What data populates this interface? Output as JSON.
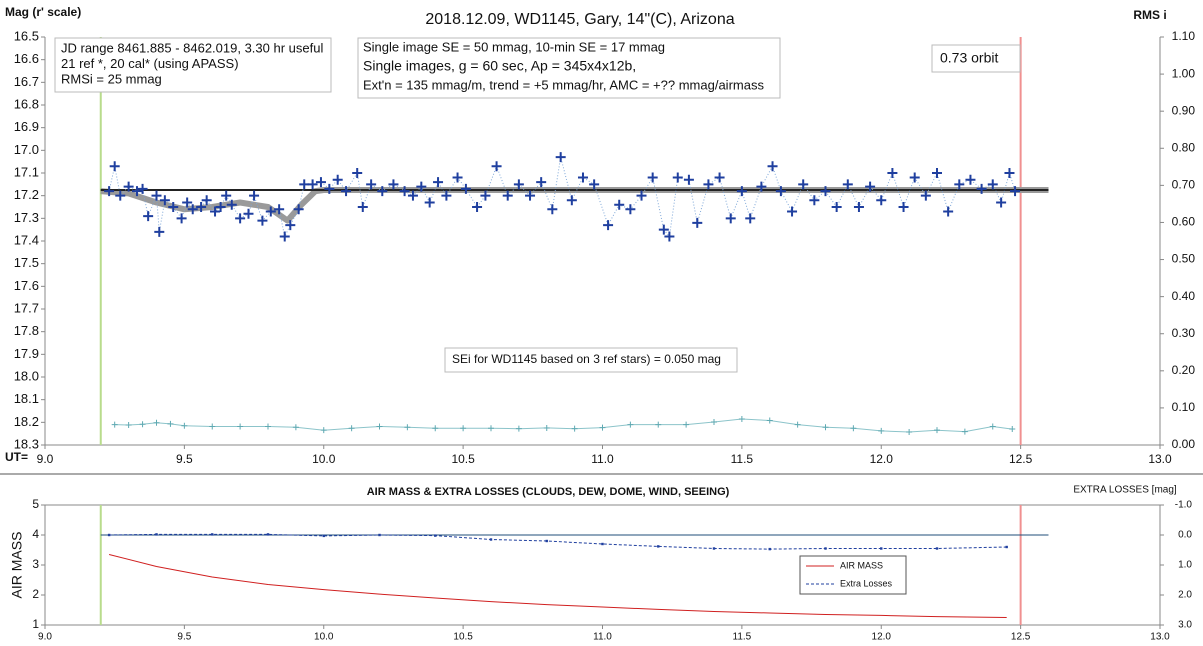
{
  "chart_data": [
    {
      "type": "line",
      "title": "2018.12.09, WD1145, Gary, 14\"(C), Arizona",
      "y_label": "Mag (r' scale)",
      "y2_label": "RMS i",
      "x_label": "UT=",
      "xlim": [
        9.0,
        13.0
      ],
      "xticks": [
        {
          "value": 9.0,
          "label": "9.0"
        },
        9.5,
        {
          "value": 10.0,
          "label": "10.0"
        },
        10.5,
        {
          "value": 11.0,
          "label": "11.0"
        },
        11.5,
        {
          "value": 12.0,
          "label": "12.0"
        },
        12.5,
        {
          "value": 13.0,
          "label": "13.0"
        }
      ],
      "ylim": [
        18.3,
        16.5
      ],
      "yticks": [
        16.5,
        16.6,
        16.7,
        16.8,
        16.9,
        {
          "value": 17.0,
          "label": "17.0"
        },
        17.1,
        17.2,
        17.3,
        17.4,
        17.5,
        17.6,
        17.7,
        17.8,
        17.9,
        {
          "value": 18.0,
          "label": "18.0"
        },
        18.1,
        18.2,
        18.3
      ],
      "y2lim": [
        0,
        1.1
      ],
      "y2ticks": [
        {
          "value": 1.1,
          "label": "1.10"
        },
        {
          "value": 1.0,
          "label": "1.00"
        },
        {
          "value": 0.9,
          "label": "0.90"
        },
        {
          "value": 0.8,
          "label": "0.80"
        },
        {
          "value": 0.7,
          "label": "0.70"
        },
        {
          "value": 0.6,
          "label": "0.60"
        },
        {
          "value": 0.5,
          "label": "0.50"
        },
        {
          "value": 0.4,
          "label": "0.40"
        },
        {
          "value": 0.3,
          "label": "0.30"
        },
        {
          "value": 0.2,
          "label": "0.20"
        },
        {
          "value": 0.1,
          "label": "0.10"
        },
        {
          "value": 0.0,
          "label": "0.00"
        }
      ],
      "vlines": [
        {
          "x": 9.2,
          "color": "#b8dc8c"
        },
        {
          "x": 12.5,
          "color": "#f09090"
        }
      ],
      "annotations": [
        {
          "lines": [
            "JD range 8461.885 - 8462.019, 3.30 hr useful",
            "21 ref *, 20 cal* (using APASS)",
            "RMSi = 25 mmag"
          ]
        },
        {
          "lines": [
            "Single image SE = 50 mmag, 10-min SE = 17 mmag",
            "Single images, g = 60 sec, Ap = 345x4x12b,",
            "Ext'n = 135 mmag/m, trend = +5 mmag/hr, AMC = +?? mmag/airmass"
          ]
        },
        {
          "lines": [
            "0.73 orbit"
          ]
        },
        {
          "lines": [
            "SEi for WD1145 based on 3 ref stars) = 0.050 mag"
          ]
        }
      ],
      "series": [
        {
          "color": "#9a9a9a",
          "line": "thick",
          "x": [
            9.2,
            9.3,
            9.4,
            9.5,
            9.6,
            9.7,
            9.8,
            9.87,
            9.92,
            9.97,
            10.0,
            12.6
          ],
          "values": [
            17.18,
            17.19,
            17.23,
            17.26,
            17.25,
            17.23,
            17.25,
            17.31,
            17.24,
            17.18,
            17.175,
            17.175
          ]
        },
        {
          "color": "#222222",
          "line": "solid",
          "x": [
            9.2,
            12.6
          ],
          "values": [
            17.175,
            17.175
          ]
        },
        {
          "color": "#1f3f9f",
          "line_color": "#7ea7d8",
          "line": "dotted",
          "marker": "plus",
          "x": [
            9.23,
            9.25,
            9.27,
            9.3,
            9.33,
            9.35,
            9.37,
            9.4,
            9.41,
            9.43,
            9.46,
            9.49,
            9.51,
            9.53,
            9.56,
            9.58,
            9.61,
            9.63,
            9.65,
            9.67,
            9.7,
            9.73,
            9.75,
            9.78,
            9.81,
            9.84,
            9.86,
            9.88,
            9.91,
            9.93,
            9.96,
            9.99,
            10.02,
            10.05,
            10.08,
            10.12,
            10.14,
            10.17,
            10.21,
            10.25,
            10.29,
            10.32,
            10.35,
            10.38,
            10.41,
            10.44,
            10.48,
            10.51,
            10.55,
            10.58,
            10.62,
            10.66,
            10.7,
            10.74,
            10.78,
            10.82,
            10.85,
            10.89,
            10.93,
            10.97,
            11.02,
            11.06,
            11.1,
            11.14,
            11.18,
            11.22,
            11.24,
            11.27,
            11.31,
            11.34,
            11.38,
            11.42,
            11.46,
            11.5,
            11.53,
            11.57,
            11.61,
            11.64,
            11.68,
            11.72,
            11.76,
            11.8,
            11.84,
            11.88,
            11.92,
            11.96,
            12.0,
            12.04,
            12.08,
            12.12,
            12.16,
            12.2,
            12.24,
            12.28,
            12.32,
            12.36,
            12.4,
            12.43,
            12.46,
            12.48
          ],
          "values": [
            17.18,
            17.07,
            17.2,
            17.16,
            17.18,
            17.17,
            17.29,
            17.2,
            17.36,
            17.22,
            17.25,
            17.3,
            17.23,
            17.26,
            17.25,
            17.22,
            17.27,
            17.25,
            17.2,
            17.24,
            17.3,
            17.28,
            17.2,
            17.31,
            17.27,
            17.26,
            17.38,
            17.33,
            17.26,
            17.15,
            17.15,
            17.14,
            17.17,
            17.13,
            17.18,
            17.1,
            17.25,
            17.15,
            17.18,
            17.15,
            17.18,
            17.2,
            17.16,
            17.23,
            17.14,
            17.2,
            17.12,
            17.17,
            17.25,
            17.2,
            17.07,
            17.2,
            17.15,
            17.2,
            17.14,
            17.26,
            17.03,
            17.22,
            17.12,
            17.15,
            17.33,
            17.24,
            17.26,
            17.2,
            17.12,
            17.35,
            17.38,
            17.12,
            17.13,
            17.32,
            17.15,
            17.12,
            17.3,
            17.18,
            17.3,
            17.16,
            17.07,
            17.18,
            17.27,
            17.15,
            17.22,
            17.18,
            17.25,
            17.15,
            17.25,
            17.16,
            17.22,
            17.1,
            17.25,
            17.12,
            17.2,
            17.1,
            17.27,
            17.15,
            17.13,
            17.17,
            17.15,
            17.23,
            17.1,
            17.18
          ]
        },
        {
          "color": "#5fa9b2",
          "line_color": "#8cc4ca",
          "line": "thin",
          "marker": "small-plus",
          "axis": "y2",
          "x": [
            9.25,
            9.3,
            9.35,
            9.4,
            9.45,
            9.5,
            9.6,
            9.7,
            9.8,
            9.9,
            10.0,
            10.1,
            10.2,
            10.3,
            10.4,
            10.5,
            10.6,
            10.7,
            10.8,
            10.9,
            11.0,
            11.1,
            11.2,
            11.3,
            11.4,
            11.5,
            11.6,
            11.7,
            11.8,
            11.9,
            12.0,
            12.1,
            12.2,
            12.3,
            12.4,
            12.47
          ],
          "values": [
            0.055,
            0.054,
            0.056,
            0.06,
            0.057,
            0.052,
            0.05,
            0.05,
            0.05,
            0.048,
            0.04,
            0.045,
            0.05,
            0.048,
            0.045,
            0.045,
            0.045,
            0.044,
            0.046,
            0.044,
            0.047,
            0.055,
            0.055,
            0.055,
            0.062,
            0.07,
            0.066,
            0.055,
            0.048,
            0.045,
            0.038,
            0.035,
            0.04,
            0.036,
            0.05,
            0.043
          ]
        }
      ]
    },
    {
      "type": "line",
      "title": "AIR MASS & EXTRA LOSSES (CLOUDS, DEW, DOME, WIND, SEEING)",
      "y_label": "AIR MASS",
      "y2_label": "EXTRA LOSSES [mag]",
      "xlim": [
        9.0,
        13.0
      ],
      "xticks": [
        {
          "value": 9.0,
          "label": "9.0"
        },
        9.5,
        {
          "value": 10.0,
          "label": "10.0"
        },
        10.5,
        {
          "value": 11.0,
          "label": "11.0"
        },
        11.5,
        {
          "value": 12.0,
          "label": "12.0"
        },
        12.5,
        {
          "value": 13.0,
          "label": "13.0"
        }
      ],
      "ylim": [
        1,
        5
      ],
      "yticks": [
        1,
        2,
        3,
        4,
        5
      ],
      "y2lim": [
        3.0,
        -1.0
      ],
      "y2ticks": [
        {
          "value": -1.0,
          "label": "-1.0"
        },
        {
          "value": 0.0,
          "label": "0.0"
        },
        {
          "value": 1.0,
          "label": "1.0"
        },
        {
          "value": 2.0,
          "label": "2.0"
        },
        {
          "value": 3.0,
          "label": "3.0"
        }
      ],
      "vlines": [
        {
          "x": 9.2,
          "color": "#b8dc8c"
        },
        {
          "x": 12.5,
          "color": "#f09090"
        }
      ],
      "hline": {
        "y": 0.0,
        "x": [
          9.2,
          12.6
        ],
        "color": "#1f4e79",
        "axis": "y2"
      },
      "legend": "center-right",
      "series": [
        {
          "name": "AIR MASS",
          "color": "#d02020",
          "line": "thin",
          "x": [
            9.23,
            9.4,
            9.6,
            9.8,
            10.0,
            10.2,
            10.4,
            10.6,
            10.8,
            11.0,
            11.2,
            11.4,
            11.6,
            11.8,
            12.0,
            12.2,
            12.45
          ],
          "values": [
            3.35,
            2.95,
            2.6,
            2.35,
            2.18,
            2.03,
            1.9,
            1.78,
            1.68,
            1.6,
            1.52,
            1.45,
            1.4,
            1.35,
            1.32,
            1.28,
            1.25
          ]
        },
        {
          "name": "Extra Losses",
          "color": "#1f3f9f",
          "line": "dashed",
          "marker": "dot",
          "axis": "y2",
          "x": [
            9.23,
            9.4,
            9.6,
            9.8,
            10.0,
            10.2,
            10.4,
            10.6,
            10.8,
            11.0,
            11.2,
            11.4,
            11.6,
            11.8,
            12.0,
            12.2,
            12.45
          ],
          "values": [
            0.0,
            -0.02,
            -0.02,
            -0.02,
            0.03,
            0.0,
            0.02,
            0.15,
            0.2,
            0.3,
            0.38,
            0.45,
            0.47,
            0.45,
            0.45,
            0.45,
            0.4
          ]
        }
      ]
    }
  ]
}
